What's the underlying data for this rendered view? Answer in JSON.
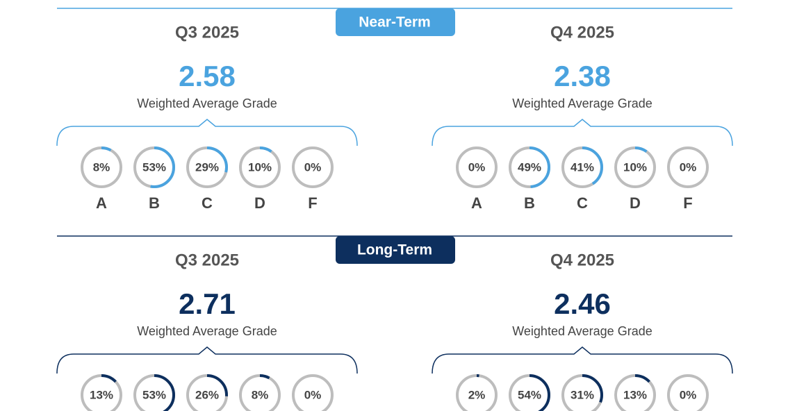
{
  "sections": [
    {
      "title": "Near-Term",
      "color": "#4aa3df",
      "panels": [
        {
          "title": "Q3 2025",
          "grade": 2.58,
          "grade_label": "Weighted Average Grade",
          "values": [
            8,
            53,
            29,
            10,
            0
          ],
          "value_labels": [
            "8%",
            "53%",
            "29%",
            "10%",
            "0%"
          ],
          "categories": [
            "A",
            "B",
            "C",
            "D",
            "F"
          ]
        },
        {
          "title": "Q4 2025",
          "grade": 2.38,
          "grade_label": "Weighted Average Grade",
          "values": [
            0,
            49,
            41,
            10,
            0
          ],
          "value_labels": [
            "0%",
            "49%",
            "41%",
            "10%",
            "0%"
          ],
          "categories": [
            "A",
            "B",
            "C",
            "D",
            "F"
          ]
        }
      ]
    },
    {
      "title": "Long-Term",
      "color": "#0d2f5e",
      "panels": [
        {
          "title": "Q3 2025",
          "grade": 2.71,
          "grade_label": "Weighted Average Grade",
          "values": [
            13,
            53,
            26,
            8,
            0
          ],
          "value_labels": [
            "13%",
            "53%",
            "26%",
            "8%",
            "0%"
          ]
        },
        {
          "title": "Q4 2025",
          "grade": 2.46,
          "grade_label": "Weighted Average Grade",
          "values": [
            2,
            54,
            31,
            13,
            0
          ],
          "value_labels": [
            "2%",
            "54%",
            "31%",
            "13%",
            "0%"
          ]
        }
      ]
    }
  ]
}
